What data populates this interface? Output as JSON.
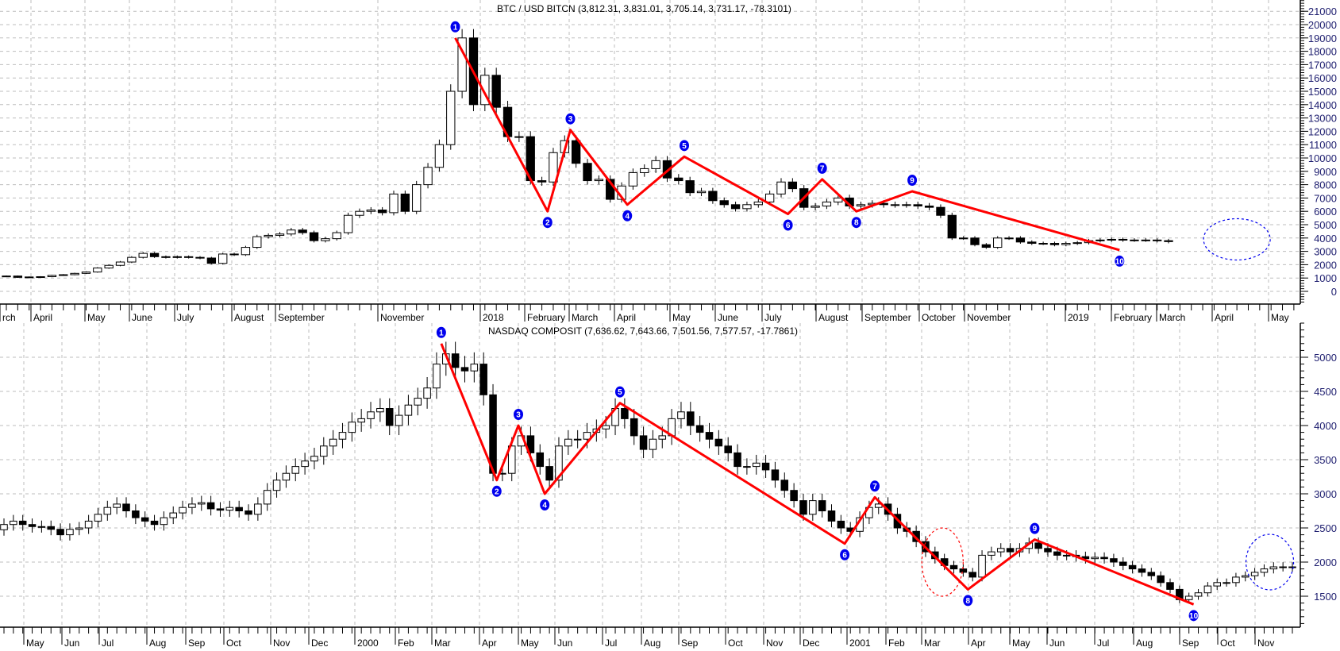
{
  "chart_data": [
    {
      "type": "candlestick",
      "title": "BTC / USD BITCN (3,812.31, 3,831.01, 3,705.14, 3,731.17, -78.3101)",
      "period": "weekly",
      "ylim": [
        0,
        21000
      ],
      "yticks": [
        0,
        1000,
        2000,
        3000,
        4000,
        5000,
        6000,
        7000,
        8000,
        9000,
        10000,
        11000,
        12000,
        13000,
        14000,
        15000,
        16000,
        17000,
        18000,
        19000,
        20000,
        21000
      ],
      "xticks": [
        "rch",
        "April",
        "May",
        "June",
        "July",
        "August",
        "September",
        "November",
        "2018",
        "February",
        "March",
        "April",
        "May",
        "June",
        "July",
        "August",
        "September",
        "October",
        "November",
        "2019",
        "February",
        "March",
        "April",
        "May"
      ],
      "grid": true,
      "closes": [
        1150,
        1050,
        1080,
        1100,
        1200,
        1250,
        1350,
        1450,
        1750,
        1950,
        2200,
        2550,
        2850,
        2600,
        2550,
        2600,
        2550,
        2500,
        2100,
        2800,
        2750,
        3300,
        4100,
        4200,
        4300,
        4600,
        4400,
        3800,
        3950,
        4400,
        5700,
        6000,
        6100,
        5900,
        7300,
        6000,
        8000,
        9300,
        11000,
        15000,
        19000,
        14000,
        16200,
        13800,
        11600,
        11600,
        8300,
        8200,
        10400,
        11300,
        9600,
        8300,
        8400,
        6900,
        7900,
        8900,
        9200,
        9800,
        8500,
        8300,
        7400,
        7500,
        6800,
        6500,
        6200,
        6500,
        6700,
        7300,
        8200,
        7700,
        6300,
        6400,
        6700,
        7000,
        6400,
        6500,
        6600,
        6500,
        6500,
        6500,
        6400,
        6300,
        5700,
        4000,
        4000,
        3500,
        3300,
        4000,
        4000,
        3700,
        3600,
        3600,
        3500,
        3600,
        3650,
        3800,
        3850,
        3900,
        3850,
        3850,
        3850,
        3800,
        3730
      ],
      "waves": [
        {
          "label": "1",
          "index": 39.4,
          "value": 19000
        },
        {
          "label": "2",
          "index": 47.5,
          "value": 6000
        },
        {
          "label": "3",
          "index": 49.5,
          "value": 12100
        },
        {
          "label": "4",
          "index": 54.5,
          "value": 6500
        },
        {
          "label": "5",
          "index": 59.5,
          "value": 10100
        },
        {
          "label": "6",
          "index": 68.6,
          "value": 5800
        },
        {
          "label": "7",
          "index": 71.6,
          "value": 8400
        },
        {
          "label": "8",
          "index": 74.6,
          "value": 6000
        },
        {
          "label": "9",
          "index": 79.5,
          "value": 7500
        },
        {
          "label": "10",
          "index": 97.7,
          "value": 3100
        }
      ],
      "ellipses": [
        {
          "index": 108,
          "value": 3900,
          "color": "#0000ee"
        }
      ]
    },
    {
      "type": "candlestick",
      "title": "NASDAQ COMPOSIT (7,636.62, 7,643.66, 7,501.56, 7,577.57, -17.7861)",
      "period": "weekly",
      "ylim": [
        1250,
        5500
      ],
      "yticks": [
        1500,
        2000,
        2500,
        3000,
        3500,
        4000,
        4500,
        5000
      ],
      "xticks": [
        "May",
        "Jun",
        "Jul",
        "Aug",
        "Sep",
        "Oct",
        "Nov",
        "Dec",
        "2000",
        "Feb",
        "Mar",
        "Apr",
        "May",
        "Jun",
        "Jul",
        "Aug",
        "Sep",
        "Oct",
        "Nov",
        "Dec",
        "2001",
        "Feb",
        "Mar",
        "Apr",
        "May",
        "Jun",
        "Jul",
        "Aug",
        "Sep",
        "Oct",
        "Nov"
      ],
      "grid": true,
      "closes": [
        2550,
        2600,
        2550,
        2520,
        2520,
        2480,
        2400,
        2480,
        2500,
        2600,
        2700,
        2800,
        2850,
        2750,
        2650,
        2600,
        2550,
        2650,
        2720,
        2800,
        2850,
        2870,
        2780,
        2760,
        2800,
        2750,
        2700,
        2850,
        3050,
        3200,
        3300,
        3400,
        3480,
        3550,
        3700,
        3800,
        3900,
        4050,
        4100,
        4200,
        4250,
        4000,
        4150,
        4300,
        4400,
        4550,
        4900,
        5050,
        4850,
        4800,
        4900,
        4450,
        3300,
        3300,
        3700,
        3850,
        3600,
        3400,
        3200,
        3700,
        3800,
        3800,
        3900,
        3950,
        4000,
        4250,
        4100,
        3850,
        3650,
        3800,
        3850,
        4100,
        4200,
        4000,
        3900,
        3800,
        3700,
        3600,
        3400,
        3400,
        3450,
        3350,
        3200,
        3050,
        2900,
        2700,
        2900,
        2750,
        2600,
        2500,
        2450,
        2650,
        2800,
        2850,
        2700,
        2500,
        2450,
        2300,
        2150,
        2050,
        1950,
        1900,
        1850,
        1780,
        2100,
        2150,
        2200,
        2150,
        2200,
        2280,
        2200,
        2150,
        2100,
        2100,
        2080,
        2050,
        2070,
        2050,
        2000,
        1950,
        1900,
        1850,
        1800,
        1700,
        1600,
        1450,
        1500,
        1550,
        1650,
        1700,
        1700,
        1780,
        1800,
        1850,
        1900,
        1930,
        1930,
        1930
      ],
      "waves": [
        {
          "label": "1",
          "index": 46.5,
          "value": 5200
        },
        {
          "label": "2",
          "index": 52.4,
          "value": 3200
        },
        {
          "label": "3",
          "index": 54.7,
          "value": 4000
        },
        {
          "label": "4",
          "index": 57.5,
          "value": 3000
        },
        {
          "label": "5",
          "index": 65.5,
          "value": 4330
        },
        {
          "label": "6",
          "index": 89.4,
          "value": 2270
        },
        {
          "label": "7",
          "index": 92.6,
          "value": 2950
        },
        {
          "label": "8",
          "index": 102.5,
          "value": 1600
        },
        {
          "label": "9",
          "index": 109.6,
          "value": 2330
        },
        {
          "label": "10",
          "index": 126.5,
          "value": 1380
        }
      ],
      "ellipses": [
        {
          "index": 99.8,
          "value": 2000,
          "color": "#ff0000"
        },
        {
          "index": 134.6,
          "value": 2000,
          "color": "#0000ee"
        }
      ]
    }
  ],
  "colors": {
    "zigzag": "#ff0000",
    "wave_marker": "#0000ee",
    "bull": "#ffffff",
    "bear": "#000000"
  }
}
